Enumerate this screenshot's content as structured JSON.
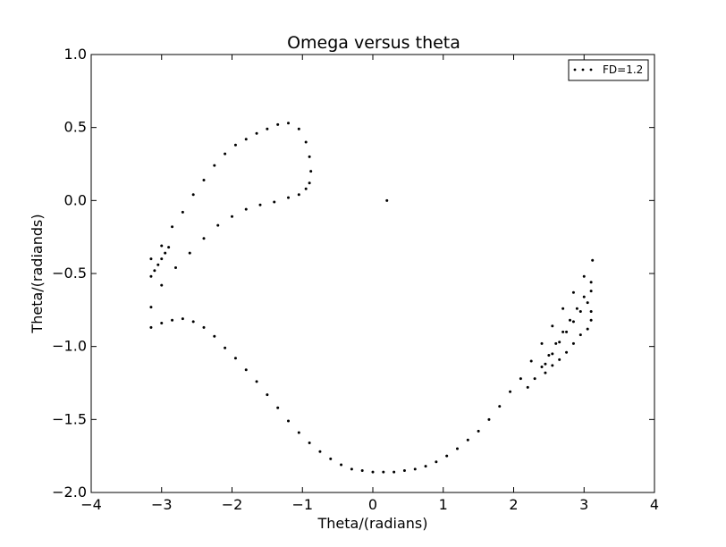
{
  "chart_data": {
    "type": "scatter",
    "title": "Omega versus theta",
    "xlabel": "Theta/(radians)",
    "ylabel": "Theta/(radiands)",
    "xlim": [
      -4,
      4
    ],
    "ylim": [
      -2.0,
      1.0
    ],
    "x_ticks": [
      -4,
      -3,
      -2,
      -1,
      0,
      1,
      2,
      3,
      4
    ],
    "x_tick_labels": [
      "−4",
      "−3",
      "−2",
      "−1",
      "0",
      "1",
      "2",
      "3",
      "4"
    ],
    "y_ticks": [
      -2.0,
      -1.5,
      -1.0,
      -0.5,
      0.0,
      0.5,
      1.0
    ],
    "y_tick_labels": [
      "−2.0",
      "−1.5",
      "−1.0",
      "−0.5",
      "0.0",
      "0.5",
      "1.0"
    ],
    "grid": false,
    "legend": {
      "position": "top-right",
      "entries": [
        "FD=1.2"
      ]
    },
    "series": [
      {
        "name": "FD=1.2",
        "color": "#000000",
        "marker": "dot",
        "points": [
          [
            -3.15,
            -0.4
          ],
          [
            -3.0,
            -0.31
          ],
          [
            -2.85,
            -0.18
          ],
          [
            -2.7,
            -0.08
          ],
          [
            -2.55,
            0.04
          ],
          [
            -2.4,
            0.14
          ],
          [
            -2.25,
            0.24
          ],
          [
            -2.1,
            0.32
          ],
          [
            -1.95,
            0.38
          ],
          [
            -1.8,
            0.42
          ],
          [
            -1.65,
            0.46
          ],
          [
            -1.5,
            0.49
          ],
          [
            -1.35,
            0.52
          ],
          [
            -1.2,
            0.53
          ],
          [
            -1.05,
            0.49
          ],
          [
            -0.95,
            0.4
          ],
          [
            -0.9,
            0.3
          ],
          [
            -0.88,
            0.2
          ],
          [
            -0.9,
            0.12
          ],
          [
            -0.95,
            0.08
          ],
          [
            -1.05,
            0.04
          ],
          [
            -1.2,
            0.02
          ],
          [
            -1.4,
            -0.01
          ],
          [
            -1.6,
            -0.03
          ],
          [
            -1.8,
            -0.06
          ],
          [
            -2.0,
            -0.11
          ],
          [
            -2.2,
            -0.17
          ],
          [
            -2.4,
            -0.26
          ],
          [
            -2.6,
            -0.36
          ],
          [
            -2.8,
            -0.46
          ],
          [
            -3.0,
            -0.58
          ],
          [
            -3.15,
            -0.73
          ],
          [
            -3.15,
            -0.52
          ],
          [
            -3.1,
            -0.48
          ],
          [
            -3.05,
            -0.44
          ],
          [
            -3.0,
            -0.4
          ],
          [
            -2.95,
            -0.36
          ],
          [
            -2.9,
            -0.32
          ],
          [
            -3.15,
            -0.87
          ],
          [
            -3.0,
            -0.84
          ],
          [
            -2.85,
            -0.82
          ],
          [
            -2.7,
            -0.81
          ],
          [
            -2.55,
            -0.83
          ],
          [
            -2.4,
            -0.87
          ],
          [
            -2.25,
            -0.93
          ],
          [
            -2.1,
            -1.01
          ],
          [
            -1.95,
            -1.08
          ],
          [
            -1.8,
            -1.16
          ],
          [
            -1.65,
            -1.24
          ],
          [
            -1.5,
            -1.33
          ],
          [
            -1.35,
            -1.42
          ],
          [
            -1.2,
            -1.51
          ],
          [
            -1.05,
            -1.59
          ],
          [
            -0.9,
            -1.66
          ],
          [
            -0.75,
            -1.72
          ],
          [
            -0.6,
            -1.77
          ],
          [
            -0.45,
            -1.81
          ],
          [
            -0.3,
            -1.84
          ],
          [
            -0.15,
            -1.85
          ],
          [
            0.0,
            -1.86
          ],
          [
            0.15,
            -1.86
          ],
          [
            0.3,
            -1.86
          ],
          [
            0.45,
            -1.85
          ],
          [
            0.6,
            -1.84
          ],
          [
            0.75,
            -1.82
          ],
          [
            0.9,
            -1.79
          ],
          [
            1.05,
            -1.75
          ],
          [
            1.2,
            -1.7
          ],
          [
            1.35,
            -1.64
          ],
          [
            1.5,
            -1.58
          ],
          [
            1.65,
            -1.5
          ],
          [
            1.8,
            -1.41
          ],
          [
            1.95,
            -1.31
          ],
          [
            2.1,
            -1.22
          ],
          [
            2.25,
            -1.1
          ],
          [
            2.4,
            -0.98
          ],
          [
            2.55,
            -0.86
          ],
          [
            2.7,
            -0.74
          ],
          [
            2.85,
            -0.63
          ],
          [
            3.0,
            -0.52
          ],
          [
            3.12,
            -0.41
          ],
          [
            2.2,
            -1.28
          ],
          [
            2.3,
            -1.22
          ],
          [
            2.4,
            -1.14
          ],
          [
            2.5,
            -1.06
          ],
          [
            2.6,
            -0.98
          ],
          [
            2.7,
            -0.9
          ],
          [
            2.8,
            -0.82
          ],
          [
            2.9,
            -0.74
          ],
          [
            3.0,
            -0.66
          ],
          [
            3.1,
            -0.56
          ],
          [
            2.45,
            -1.12
          ],
          [
            2.55,
            -1.05
          ],
          [
            2.65,
            -0.97
          ],
          [
            2.75,
            -0.9
          ],
          [
            2.85,
            -0.83
          ],
          [
            2.95,
            -0.76
          ],
          [
            3.05,
            -0.7
          ],
          [
            3.1,
            -0.62
          ],
          [
            3.1,
            -0.76
          ],
          [
            3.1,
            -0.82
          ],
          [
            3.05,
            -0.88
          ],
          [
            2.95,
            -0.92
          ],
          [
            2.85,
            -0.98
          ],
          [
            2.75,
            -1.04
          ],
          [
            2.65,
            -1.09
          ],
          [
            2.55,
            -1.13
          ],
          [
            2.45,
            -1.18
          ],
          [
            0.2,
            0.0
          ]
        ]
      }
    ]
  }
}
